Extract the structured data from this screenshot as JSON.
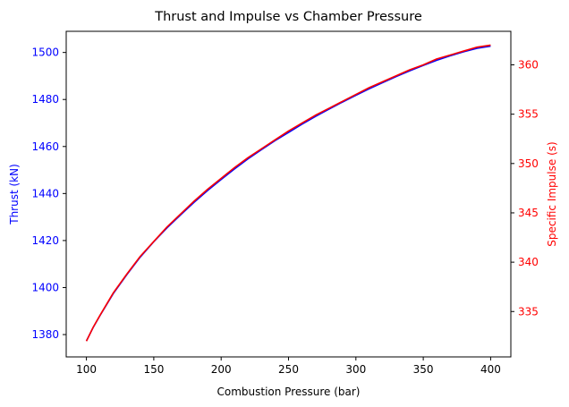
{
  "chart_data": {
    "type": "line",
    "title": "Thrust and Impulse vs Chamber Pressure",
    "xlabel": "Combustion Pressure (bar)",
    "y1label": "Thrust (kN)",
    "y2label": "Specific Impulse (s)",
    "xlim": [
      85,
      415
    ],
    "y1lim": [
      1370.5,
      1509
    ],
    "y2lim": [
      330.4,
      363.4
    ],
    "x_ticks": [
      100,
      150,
      200,
      250,
      300,
      350,
      400
    ],
    "y1_ticks": [
      1380,
      1400,
      1420,
      1440,
      1460,
      1480,
      1500
    ],
    "y2_ticks": [
      335,
      340,
      345,
      350,
      355,
      360
    ],
    "grid": false,
    "colors": {
      "y1_axis": "#0000ff",
      "y2_axis": "#ff0000",
      "series_thrust": "#0000ff",
      "series_isp": "#ff0000",
      "axes": "#000000"
    },
    "series": [
      {
        "axis": "left",
        "x": [
          100,
          105,
          110,
          120,
          130,
          140,
          150,
          160,
          170,
          180,
          190,
          200,
          210,
          220,
          230,
          240,
          250,
          260,
          270,
          280,
          290,
          300,
          310,
          320,
          330,
          340,
          350,
          360,
          370,
          380,
          390,
          400
        ],
        "values": [
          1377.3,
          1383.0,
          1388.0,
          1397.5,
          1405.5,
          1413.0,
          1419.5,
          1425.5,
          1431.0,
          1436.3,
          1441.3,
          1446.0,
          1450.5,
          1454.8,
          1458.7,
          1462.5,
          1466.0,
          1469.5,
          1472.8,
          1475.9,
          1478.9,
          1481.8,
          1484.6,
          1487.2,
          1489.8,
          1492.2,
          1494.5,
          1496.7,
          1498.6,
          1500.3,
          1501.8,
          1502.7
        ]
      },
      {
        "axis": "right",
        "x": [
          100,
          105,
          110,
          120,
          130,
          140,
          150,
          160,
          170,
          180,
          190,
          200,
          210,
          220,
          230,
          240,
          250,
          260,
          270,
          280,
          290,
          300,
          310,
          320,
          330,
          340,
          350,
          360,
          370,
          380,
          390,
          400
        ],
        "values": [
          332.0,
          333.4,
          334.6,
          336.9,
          338.8,
          340.6,
          342.1,
          343.6,
          344.9,
          346.2,
          347.4,
          348.5,
          349.6,
          350.6,
          351.5,
          352.4,
          353.3,
          354.1,
          354.9,
          355.6,
          356.3,
          357.0,
          357.7,
          358.3,
          358.9,
          359.5,
          360.0,
          360.6,
          361.0,
          361.4,
          361.8,
          362.0
        ]
      }
    ]
  }
}
